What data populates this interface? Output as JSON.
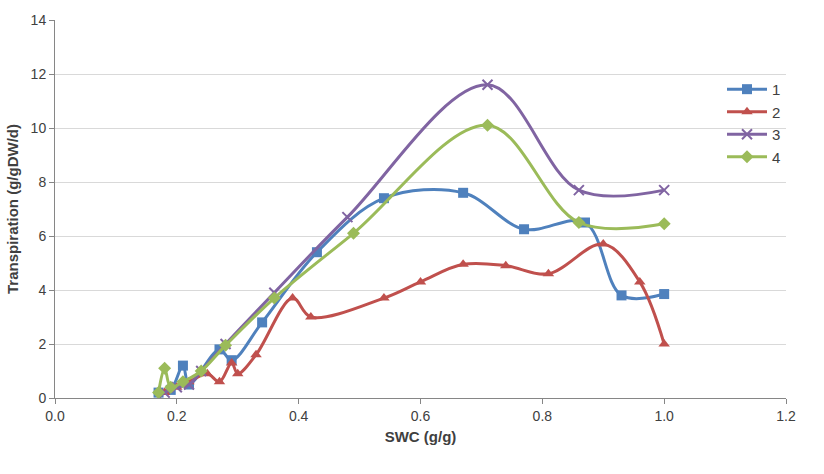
{
  "chart_data": {
    "type": "line",
    "x_label": "SWC (g/g)",
    "y_label": "Transpiration (g/gDW/d)",
    "xlim": [
      0,
      1.2
    ],
    "xticks": [
      {
        "value": 0,
        "label": "0.0"
      },
      0.2,
      0.4,
      0.6,
      0.8,
      {
        "value": 1,
        "label": "1.0"
      },
      1.2
    ],
    "ylim": [
      0,
      14
    ],
    "yticks": [
      0,
      2,
      4,
      6,
      8,
      10,
      12,
      14
    ],
    "grid": true,
    "legend": "right",
    "line_style": "smooth",
    "series": [
      {
        "name": "1",
        "color": "#4f81bd",
        "marker": "square",
        "x": [
          0.17,
          0.19,
          0.21,
          0.22,
          0.27,
          0.29,
          0.34,
          0.43,
          0.54,
          0.67,
          0.77,
          0.87,
          0.93,
          1.0
        ],
        "values": [
          0.2,
          0.3,
          1.2,
          0.5,
          1.8,
          1.4,
          2.8,
          5.4,
          7.4,
          7.6,
          6.25,
          6.5,
          3.8,
          3.85
        ]
      },
      {
        "name": "2",
        "color": "#c0504d",
        "marker": "triangle",
        "x": [
          0.18,
          0.2,
          0.22,
          0.25,
          0.27,
          0.29,
          0.3,
          0.33,
          0.39,
          0.42,
          0.54,
          0.6,
          0.67,
          0.74,
          0.81,
          0.9,
          0.96,
          1.0
        ],
        "values": [
          0.2,
          0.4,
          0.6,
          0.9,
          0.6,
          1.3,
          0.9,
          1.6,
          3.7,
          3.0,
          3.7,
          4.3,
          4.95,
          4.9,
          4.6,
          5.7,
          4.3,
          2.0
        ]
      },
      {
        "name": "3",
        "color": "#8064a2",
        "marker": "x",
        "x": [
          0.18,
          0.2,
          0.22,
          0.24,
          0.28,
          0.36,
          0.48,
          0.71,
          0.86,
          1.0
        ],
        "values": [
          0.2,
          0.4,
          0.5,
          1.0,
          2.0,
          3.9,
          6.7,
          11.6,
          7.7,
          7.7
        ]
      },
      {
        "name": "4",
        "color": "#9bbb59",
        "marker": "diamond",
        "x": [
          0.17,
          0.18,
          0.19,
          0.21,
          0.24,
          0.28,
          0.36,
          0.49,
          0.71,
          0.86,
          1.0
        ],
        "values": [
          0.2,
          1.1,
          0.4,
          0.6,
          1.0,
          1.95,
          3.7,
          6.1,
          10.1,
          6.5,
          6.45
        ]
      }
    ]
  }
}
